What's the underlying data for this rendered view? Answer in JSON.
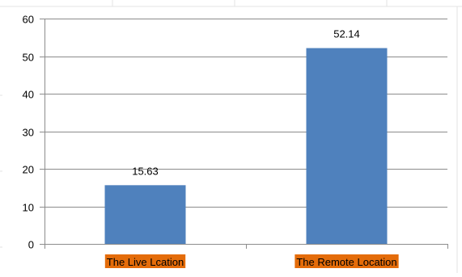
{
  "chart_data": {
    "type": "bar",
    "categories": [
      "The Live Lcation",
      "The Remote Location"
    ],
    "values": [
      15.63,
      52.14
    ],
    "data_labels": [
      "15.63",
      "52.14"
    ],
    "ylim": [
      0,
      60
    ],
    "yticks": [
      0,
      10,
      20,
      30,
      40,
      50,
      60
    ],
    "grid": true,
    "legend": "none",
    "colors": {
      "bar": "#4f81bd",
      "gridline": "#8c8c8c",
      "category_label_background": "#e46c0a",
      "text": "#000000"
    }
  }
}
